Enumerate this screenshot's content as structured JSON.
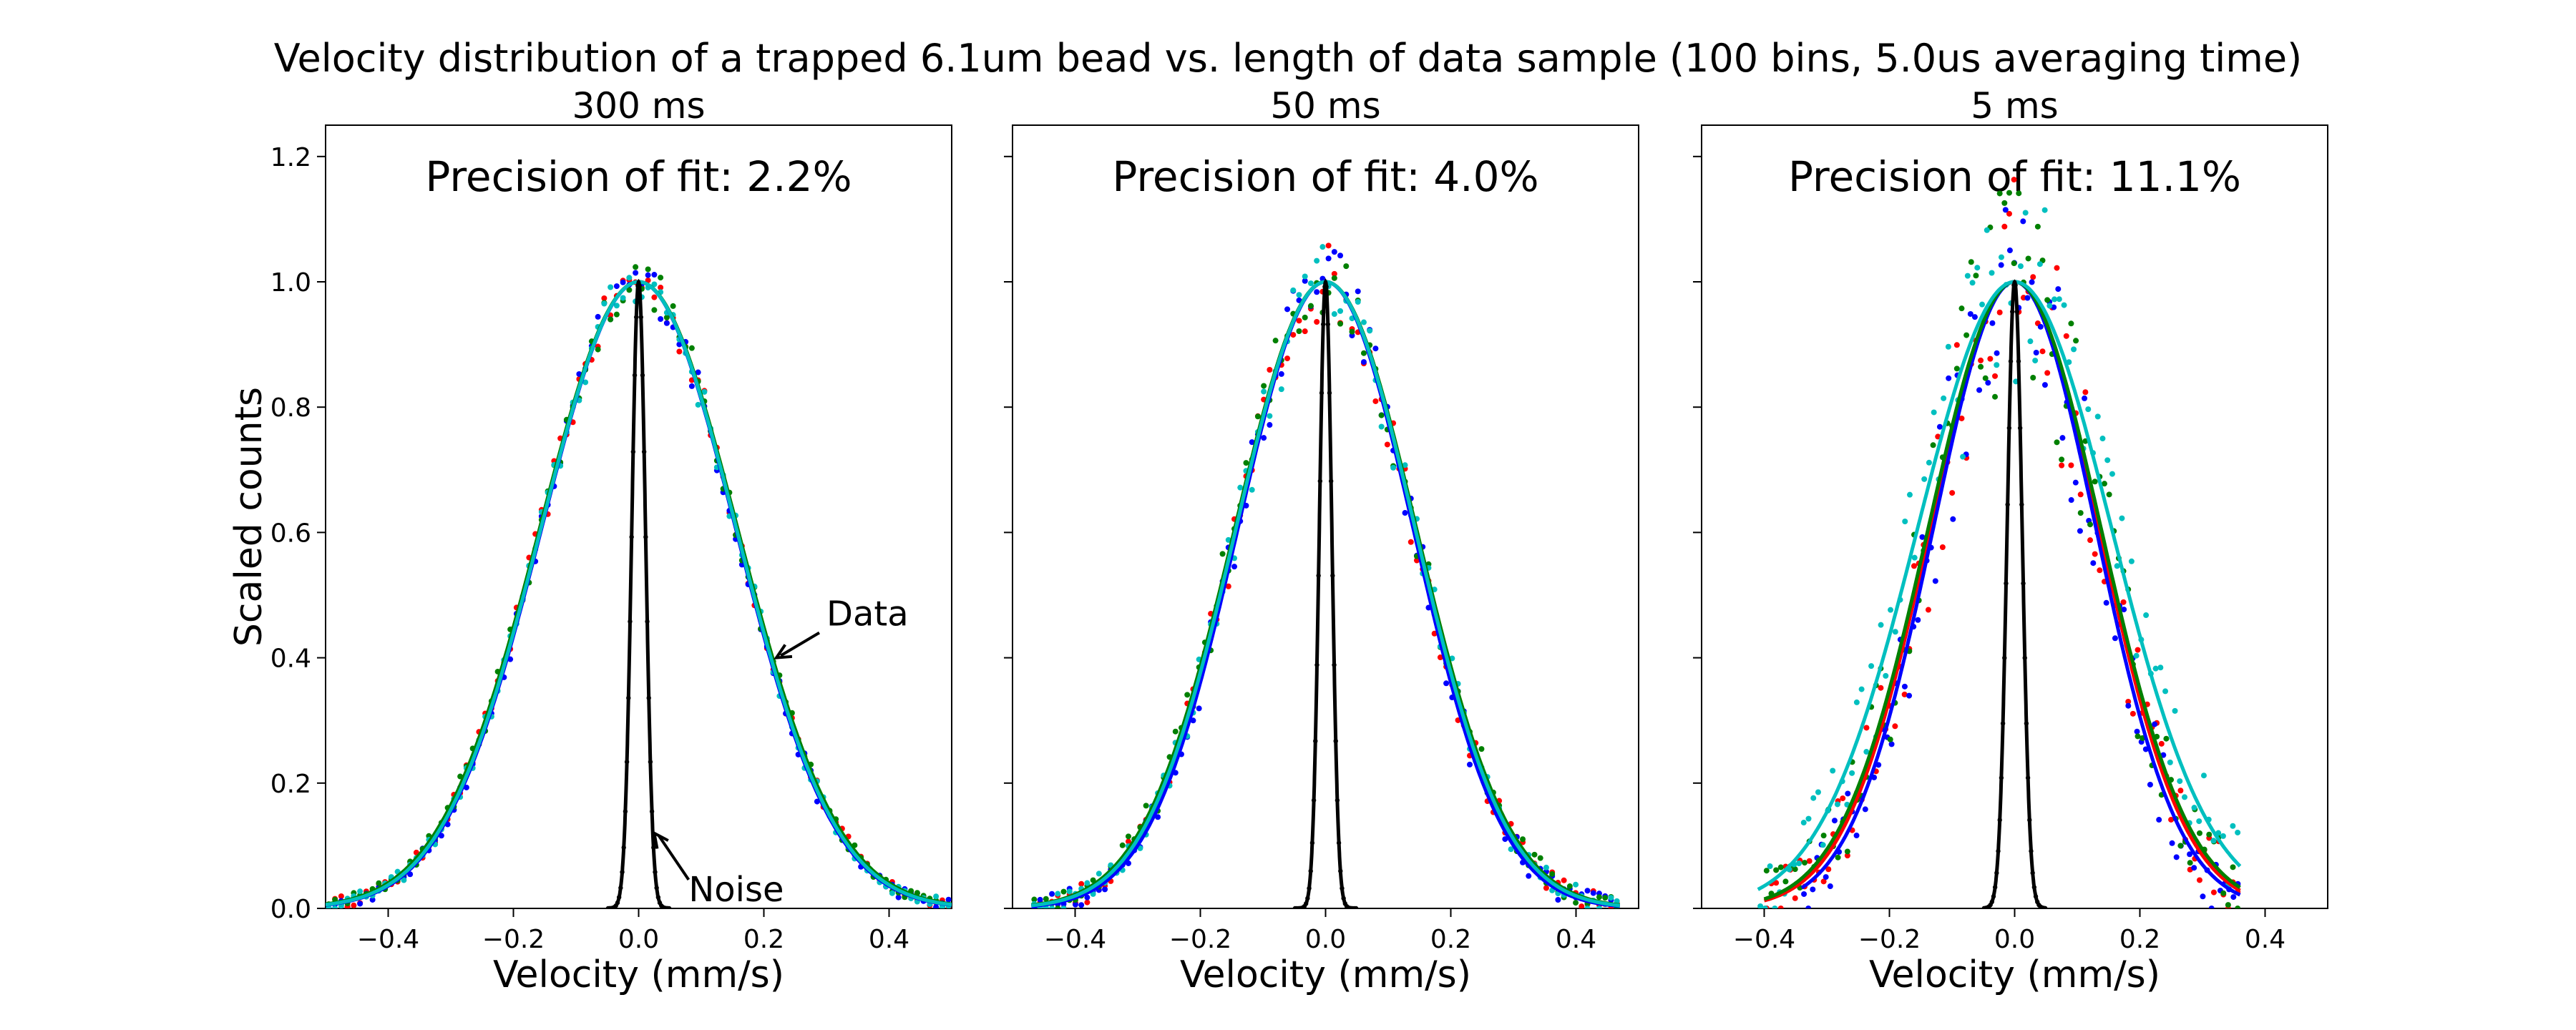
{
  "figure": {
    "suptitle": "Velocity distribution of a trapped 6.1um bead vs. length of data sample (100 bins, 5.0us averaging time)"
  },
  "colors": {
    "red": "#ff0000",
    "blue": "#0000ff",
    "green": "#008000",
    "cyan": "#00bfbf",
    "black": "#000000"
  },
  "chart_data": [
    {
      "type": "scatter",
      "title": "300 ms",
      "annotation": "Precision of fit: 2.2%",
      "xlabel": "Velocity (mm/s)",
      "ylabel": "Scaled counts",
      "xlim": [
        -0.5,
        0.5
      ],
      "ylim": [
        0.0,
        1.25
      ],
      "xticks": [
        "−0.4",
        "−0.2",
        "0.0",
        "0.2",
        "0.4"
      ],
      "yticks": [
        "0.0",
        "0.2",
        "0.4",
        "0.6",
        "0.8",
        "1.0",
        "1.2"
      ],
      "grid": false,
      "arrow_labels": [
        {
          "text": "Data",
          "points_to": [
            0.22,
            0.4
          ]
        },
        {
          "text": "Noise",
          "points_to": [
            0.025,
            0.12
          ]
        }
      ],
      "series": [
        {
          "color": "red",
          "fit_sigma": 0.157,
          "fit_mu": 0.0,
          "fit_xrange": [
            -0.5,
            0.5
          ]
        },
        {
          "color": "blue",
          "fit_sigma": 0.155,
          "fit_mu": 0.0,
          "fit_xrange": [
            -0.5,
            0.5
          ]
        },
        {
          "color": "green",
          "fit_sigma": 0.158,
          "fit_mu": 0.0,
          "fit_xrange": [
            -0.5,
            0.5
          ]
        },
        {
          "color": "cyan",
          "fit_sigma": 0.156,
          "fit_mu": 0.0,
          "fit_xrange": [
            -0.5,
            0.5
          ]
        },
        {
          "color": "black",
          "fit_sigma": 0.011,
          "fit_mu": 0.0,
          "fit_xrange": [
            -0.05,
            0.05
          ]
        }
      ],
      "scatter_scatter_amount": 0.025
    },
    {
      "type": "scatter",
      "title": "50 ms",
      "annotation": "Precision of fit: 4.0%",
      "xlabel": "Velocity (mm/s)",
      "ylabel": "",
      "xlim": [
        -0.5,
        0.5
      ],
      "ylim": [
        0.0,
        1.25
      ],
      "xticks": [
        "−0.4",
        "−0.2",
        "0.0",
        "0.2",
        "0.4"
      ],
      "yticks": [
        "0.0",
        "0.2",
        "0.4",
        "0.6",
        "0.8",
        "1.0",
        "1.2"
      ],
      "grid": false,
      "series": [
        {
          "color": "red",
          "fit_sigma": 0.142,
          "fit_mu": 0.0,
          "fit_xrange": [
            -0.47,
            0.47
          ]
        },
        {
          "color": "blue",
          "fit_sigma": 0.14,
          "fit_mu": 0.0,
          "fit_xrange": [
            -0.47,
            0.47
          ]
        },
        {
          "color": "green",
          "fit_sigma": 0.145,
          "fit_mu": 0.0,
          "fit_xrange": [
            -0.47,
            0.47
          ]
        },
        {
          "color": "cyan",
          "fit_sigma": 0.143,
          "fit_mu": 0.0,
          "fit_xrange": [
            -0.47,
            0.47
          ]
        },
        {
          "color": "black",
          "fit_sigma": 0.01,
          "fit_mu": 0.0,
          "fit_xrange": [
            -0.05,
            0.05
          ]
        }
      ],
      "scatter_scatter_amount": 0.045
    },
    {
      "type": "scatter",
      "title": "5 ms",
      "annotation": "Precision of fit: 11.1%",
      "xlabel": "Velocity (mm/s)",
      "ylabel": "",
      "xlim": [
        -0.5,
        0.5
      ],
      "ylim": [
        0.0,
        1.25
      ],
      "xticks": [
        "−0.4",
        "−0.2",
        "0.0",
        "0.2",
        "0.4"
      ],
      "yticks": [
        "0.0",
        "0.2",
        "0.4",
        "0.6",
        "0.8",
        "1.0",
        "1.2"
      ],
      "grid": false,
      "series": [
        {
          "color": "red",
          "fit_sigma": 0.135,
          "fit_mu": 0.0,
          "fit_xrange": [
            -0.4,
            0.36
          ]
        },
        {
          "color": "blue",
          "fit_sigma": 0.13,
          "fit_mu": 0.0,
          "fit_xrange": [
            -0.34,
            0.36
          ]
        },
        {
          "color": "green",
          "fit_sigma": 0.138,
          "fit_mu": 0.0,
          "fit_xrange": [
            -0.4,
            0.36
          ]
        },
        {
          "color": "cyan",
          "fit_sigma": 0.155,
          "fit_mu": 0.0,
          "fit_xrange": [
            -0.41,
            0.36
          ]
        },
        {
          "color": "black",
          "fit_sigma": 0.012,
          "fit_mu": 0.0,
          "fit_xrange": [
            -0.05,
            0.05
          ]
        }
      ],
      "scatter_scatter_amount": 0.12
    }
  ]
}
